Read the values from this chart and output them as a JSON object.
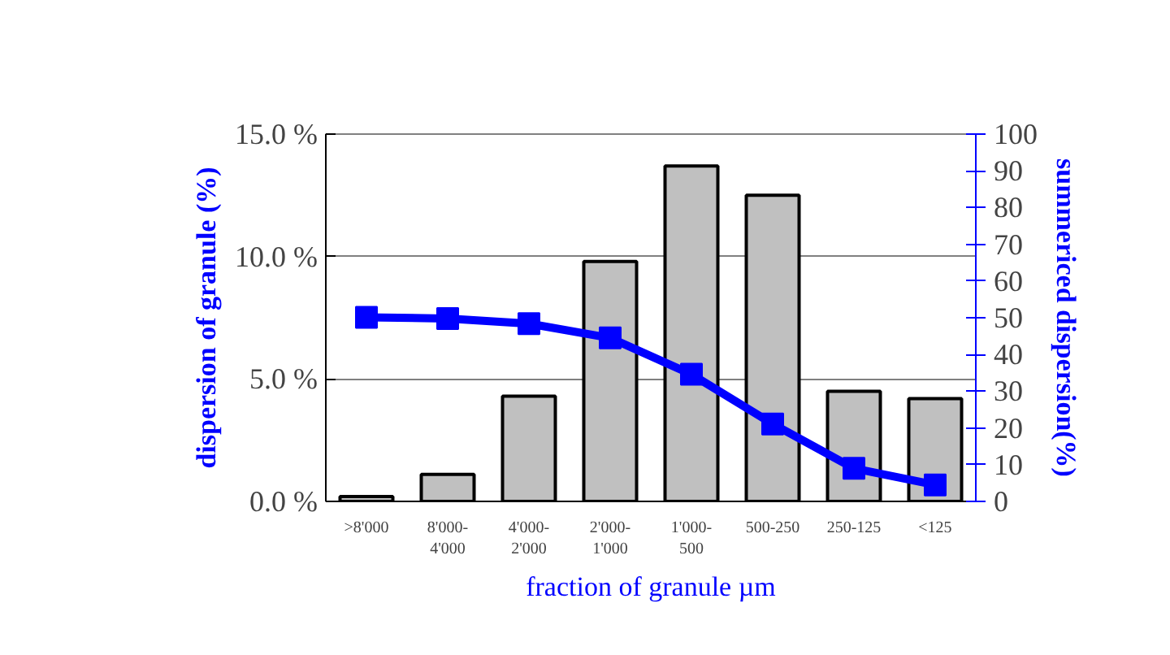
{
  "chart_data": {
    "type": "bar",
    "xlabel": "fraction of granule µm",
    "ylabel": "dispersion of granule (%)",
    "y2label": "summericed dispersion(%)",
    "categories": [
      ">8'000",
      "8'000-\n4'000",
      "4'000-\n2'000",
      "2'000-\n1'000",
      "1'000-\n500",
      "500-250",
      "250-125",
      "<125"
    ],
    "series": [
      {
        "color": "#c0c0c0",
        "values": [
          0.2,
          1.1,
          4.3,
          9.8,
          13.7,
          12.5,
          4.5,
          4.2
        ]
      },
      {
        "type": "line",
        "axis": "y2",
        "color": "#0000ff",
        "marker": "square",
        "values": [
          50.1,
          49.8,
          48.4,
          44.5,
          34.6,
          21.1,
          9.0,
          4.5
        ]
      }
    ],
    "ylim": [
      0,
      15
    ],
    "yticks": [
      {
        "value": 0,
        "label": "0.0 %"
      },
      {
        "value": 5,
        "label": "5.0 %"
      },
      {
        "value": 10,
        "label": "10.0 %"
      },
      {
        "value": 15,
        "label": "15.0 %"
      }
    ],
    "y2lim": [
      0,
      100
    ],
    "y2ticks": [
      0,
      10,
      20,
      30,
      40,
      50,
      60,
      70,
      80,
      90,
      100
    ],
    "grid": "y"
  }
}
